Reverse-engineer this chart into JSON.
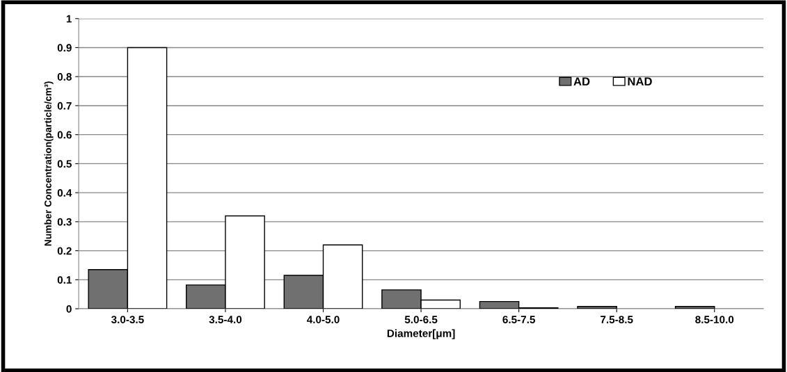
{
  "chart_data": {
    "type": "bar",
    "xlabel": "Diameter[μm]",
    "ylabel": "Number Concentration(particle/cm³)",
    "categories": [
      "3.0-3.5",
      "3.5-4.0",
      "4.0-5.0",
      "5.0-6.5",
      "6.5-7.5",
      "7.5-8.5",
      "8.5-10.0"
    ],
    "series": [
      {
        "name": "AD",
        "color": "#707070",
        "values": [
          0.135,
          0.082,
          0.115,
          0.065,
          0.025,
          0.008,
          0.008
        ]
      },
      {
        "name": "NAD",
        "color": "#ffffff",
        "values": [
          0.9,
          0.32,
          0.22,
          0.03,
          0.003,
          null,
          null
        ]
      }
    ],
    "ylim": [
      0,
      1
    ],
    "yticks": [
      0,
      0.1,
      0.2,
      0.3,
      0.4,
      0.5,
      0.6,
      0.7,
      0.8,
      0.9,
      1
    ],
    "grid": "y",
    "legend": "top right"
  }
}
